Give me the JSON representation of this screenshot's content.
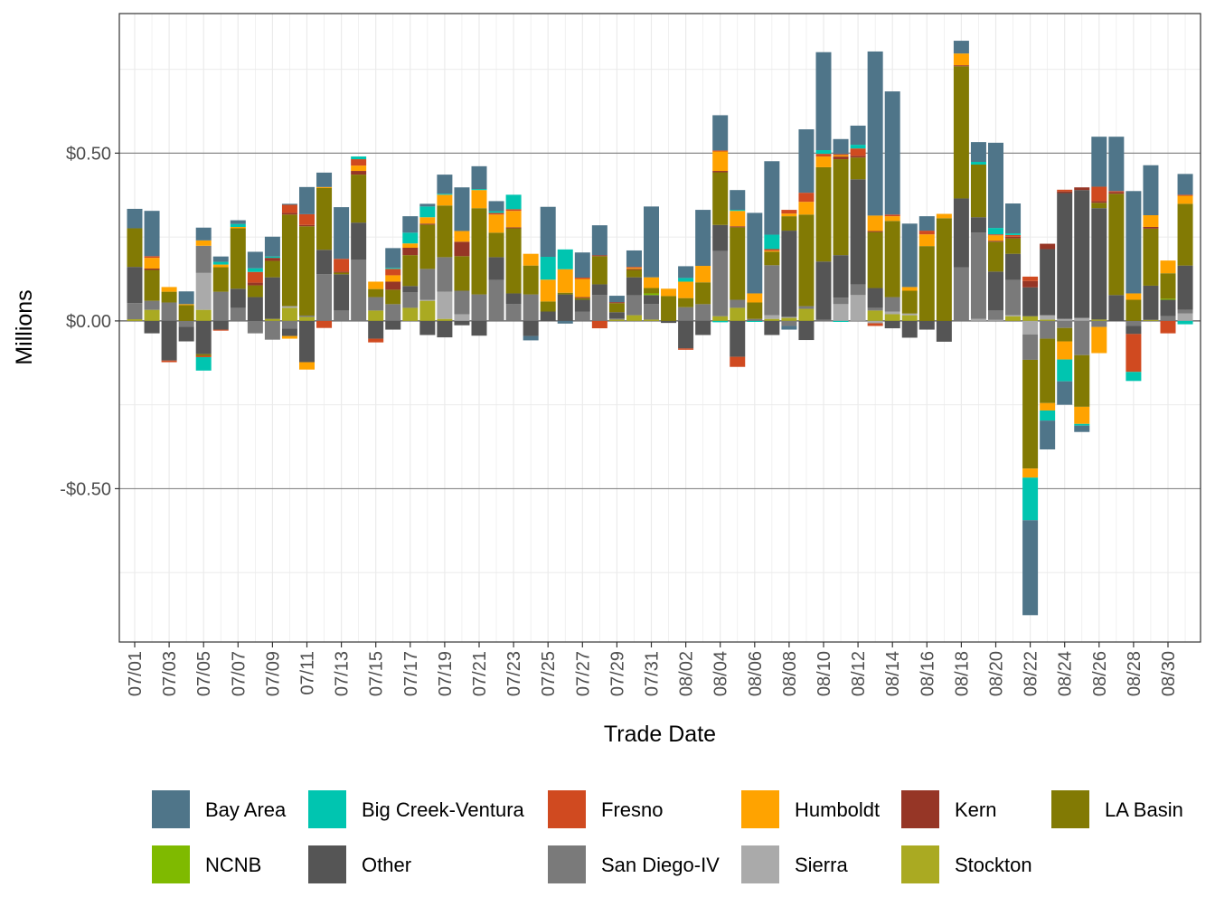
{
  "chart_data": {
    "type": "bar",
    "stacked": true,
    "title": "",
    "xlabel": "Trade Date",
    "ylabel": "Millions",
    "ylim": [
      -0.957,
      0.916
    ],
    "yticks": [
      {
        "value": 0.5,
        "label": "$0.50"
      },
      {
        "value": 0.0,
        "label": "$0.00"
      },
      {
        "value": -0.5,
        "label": "-$0.50"
      }
    ],
    "grid": true,
    "legend_position": "bottom",
    "categories": [
      "07/01",
      "07/02",
      "07/03",
      "07/04",
      "07/05",
      "07/06",
      "07/07",
      "07/08",
      "07/09",
      "07/10",
      "07/11",
      "07/12",
      "07/13",
      "07/14",
      "07/15",
      "07/16",
      "07/17",
      "07/18",
      "07/19",
      "07/20",
      "07/21",
      "07/22",
      "07/23",
      "07/24",
      "07/25",
      "07/26",
      "07/27",
      "07/28",
      "07/29",
      "07/30",
      "07/31",
      "08/01",
      "08/02",
      "08/03",
      "08/04",
      "08/05",
      "08/06",
      "08/07",
      "08/08",
      "08/09",
      "08/10",
      "08/11",
      "08/12",
      "08/13",
      "08/14",
      "08/15",
      "08/16",
      "08/17",
      "08/18",
      "08/19",
      "08/20",
      "08/21",
      "08/22",
      "08/23",
      "08/24",
      "08/25",
      "08/26",
      "08/27",
      "08/28",
      "08/29",
      "08/30",
      "08/31"
    ],
    "tick_labels": [
      "07/01",
      "07/03",
      "07/05",
      "07/07",
      "07/09",
      "07/11",
      "07/13",
      "07/15",
      "07/17",
      "07/19",
      "07/21",
      "07/23",
      "07/25",
      "07/27",
      "07/29",
      "07/31",
      "08/02",
      "08/04",
      "08/06",
      "08/08",
      "08/10",
      "08/12",
      "08/14",
      "08/16",
      "08/18",
      "08/20",
      "08/22",
      "08/24",
      "08/26",
      "08/28",
      "08/30"
    ],
    "series": [
      {
        "name": "Bay Area",
        "color": "#4F7589",
        "values": [
          0.058,
          0.135,
          0,
          0.038,
          0.038,
          0.016,
          0.011,
          0.049,
          0.059,
          0.003,
          0.081,
          0.043,
          0.154,
          0,
          0,
          0.059,
          0.049,
          0.008,
          0.057,
          0.13,
          0.068,
          0.03,
          0,
          -0.013,
          0.149,
          -0.008,
          0.075,
          0.089,
          0.019,
          0.049,
          0.211,
          0,
          0.035,
          0.167,
          0.105,
          0.059,
          0.24,
          0.219,
          -0.011,
          0.189,
          0.292,
          0.045,
          0.057,
          0.489,
          0.367,
          0.189,
          0.043,
          0,
          0.038,
          0.059,
          0.254,
          0.089,
          -0.283,
          -0.086,
          -0.07,
          -0.019,
          0.149,
          0.162,
          0.305,
          0.149,
          0,
          0.062
        ]
      },
      {
        "name": "Big Creek-Ventura",
        "color": "#00C5B0",
        "values": [
          0,
          0,
          0,
          0,
          -0.04,
          0.008,
          0.009,
          0.011,
          0.004,
          0,
          0,
          0,
          0,
          0.008,
          0,
          0.003,
          0.032,
          0.032,
          0.003,
          0,
          0.003,
          0.005,
          0.043,
          0,
          0.068,
          0.059,
          0,
          0,
          0,
          0,
          0,
          0,
          0.011,
          0,
          -0.004,
          0.003,
          -0.003,
          0.043,
          0,
          0,
          0.011,
          -0.003,
          0.011,
          0,
          0,
          0,
          0,
          0,
          0,
          0.008,
          0.019,
          0.005,
          -0.127,
          -0.03,
          -0.065,
          -0.005,
          0,
          0,
          -0.027,
          0,
          0,
          -0.01
        ]
      },
      {
        "name": "Fresno",
        "color": "#D04A20",
        "values": [
          0,
          0.005,
          -0.005,
          0,
          -0.004,
          -0.003,
          0,
          0.032,
          0,
          0.024,
          0.032,
          -0.021,
          0.038,
          0.019,
          -0.011,
          0.019,
          0,
          0,
          0,
          0,
          0,
          0.005,
          0.005,
          0,
          0,
          0,
          0.004,
          -0.022,
          0,
          0.003,
          0,
          0,
          -0.004,
          0,
          0.003,
          -0.03,
          0,
          0.005,
          0.011,
          0.027,
          0.008,
          0.003,
          0.022,
          -0.008,
          0.005,
          0,
          0.011,
          0,
          0,
          0,
          0.003,
          0.005,
          0.013,
          0,
          0.005,
          0,
          0.043,
          0.003,
          -0.113,
          0,
          -0.037,
          0.003
        ]
      },
      {
        "name": "Humboldt",
        "color": "#FFA300",
        "values": [
          0,
          0.032,
          0.014,
          0.003,
          0.016,
          0.008,
          0.004,
          0,
          0,
          -0.008,
          -0.022,
          0.003,
          0,
          0.016,
          0.022,
          0.019,
          0.013,
          0.019,
          0.032,
          0.032,
          0.054,
          0.054,
          0.049,
          0.035,
          0.065,
          0.07,
          0.054,
          0,
          0,
          0.003,
          0.032,
          0.022,
          0.049,
          0.049,
          0.058,
          0.046,
          0.027,
          0.003,
          0.008,
          0.038,
          0.032,
          0.004,
          0,
          0.046,
          0.014,
          0.011,
          0.035,
          0.013,
          0.035,
          0,
          0.016,
          0,
          -0.027,
          -0.022,
          -0.054,
          -0.051,
          -0.078,
          0,
          0.019,
          0.035,
          0.038,
          0.024
        ]
      },
      {
        "name": "Kern",
        "color": "#963626",
        "values": [
          0,
          0.004,
          0,
          0,
          0,
          0,
          0,
          0.008,
          0.009,
          0.005,
          0.004,
          0,
          0.003,
          0.011,
          0,
          0.024,
          0.022,
          0.003,
          0,
          0.043,
          0,
          0,
          0.003,
          0,
          0,
          0,
          0.003,
          0.003,
          0.003,
          0.003,
          0,
          0,
          0,
          0,
          0.004,
          0.003,
          0,
          0,
          0,
          0,
          0,
          0.008,
          0.005,
          0.003,
          0,
          0,
          0,
          0,
          0.003,
          0,
          0.003,
          0.005,
          0.019,
          0.016,
          0.005,
          0.008,
          0.005,
          0.005,
          0,
          0.005,
          0,
          0
        ]
      },
      {
        "name": "LA Basin",
        "color": "#827A04",
        "values": [
          0.115,
          0.092,
          0.032,
          0.047,
          -0.005,
          0.073,
          0.18,
          0.035,
          0.049,
          0.273,
          0.266,
          0.184,
          0.005,
          0.143,
          0.024,
          0.043,
          0.092,
          0.132,
          0.154,
          0.103,
          0.257,
          0.073,
          0.194,
          0.086,
          0.03,
          0.005,
          0.005,
          0.084,
          0.027,
          0.022,
          0.016,
          0.074,
          0.027,
          0.065,
          0.157,
          0.216,
          0.049,
          0.04,
          0.043,
          0.273,
          0.281,
          0.286,
          0.065,
          0.167,
          0.227,
          0.068,
          0.223,
          0.306,
          0.394,
          0.157,
          0.089,
          0.046,
          -0.324,
          -0.192,
          -0.04,
          -0.154,
          0.016,
          0.302,
          0.063,
          0.17,
          0.076,
          0.184
        ]
      },
      {
        "name": "NCNB",
        "color": "#7FBA00",
        "values": [
          0,
          0,
          0,
          0,
          0,
          0,
          0,
          0,
          0,
          0,
          0,
          0,
          0,
          0,
          0,
          0,
          0,
          0,
          0,
          0,
          0,
          0,
          0,
          0,
          0,
          0,
          0,
          0,
          0,
          0,
          0.005,
          0,
          0,
          0,
          0,
          0,
          0,
          0,
          0,
          0,
          0,
          0,
          0,
          0,
          0,
          0,
          0,
          0,
          0,
          0,
          0,
          0,
          0,
          0,
          0,
          0,
          0,
          0,
          0,
          0,
          0.003,
          0
        ]
      },
      {
        "name": "Other",
        "color": "#555555",
        "values": [
          0.108,
          -0.037,
          -0.118,
          -0.044,
          -0.099,
          -0.026,
          0.057,
          0.071,
          0.124,
          -0.022,
          -0.123,
          0.073,
          0.108,
          0.111,
          -0.053,
          -0.026,
          0.019,
          -0.042,
          -0.049,
          -0.013,
          -0.044,
          0.068,
          0.032,
          -0.045,
          0.028,
          0.079,
          0.035,
          0.032,
          0.019,
          0.054,
          0.027,
          -0.006,
          -0.082,
          -0.042,
          0.078,
          -0.107,
          0,
          -0.042,
          0.257,
          -0.057,
          0.174,
          0.127,
          0.313,
          0.059,
          -0.022,
          -0.05,
          -0.026,
          -0.062,
          0.205,
          0.046,
          0.116,
          0.078,
          0.086,
          0.197,
          0.375,
          0.381,
          0.332,
          0.077,
          -0.024,
          0.102,
          0.049,
          0.132
        ]
      },
      {
        "name": "San Diego-IV",
        "color": "#7A7A7A",
        "values": [
          0.048,
          0.027,
          0.055,
          -0.017,
          0.081,
          0.087,
          0.039,
          -0.037,
          -0.056,
          -0.023,
          0.004,
          0.139,
          0.031,
          0.182,
          0.04,
          0.05,
          0.046,
          0.092,
          0.103,
          0.07,
          0.079,
          0.122,
          0.05,
          0.079,
          0,
          0,
          0.028,
          0.077,
          0.003,
          0.059,
          0.046,
          0,
          0.041,
          0.05,
          0.194,
          0.024,
          0.006,
          0.149,
          -0.015,
          0.008,
          0.003,
          0.019,
          0.032,
          0.008,
          0.043,
          0,
          0,
          0,
          0.16,
          0.257,
          0.028,
          0.105,
          -0.076,
          -0.053,
          -0.021,
          -0.102,
          -0.018,
          0,
          -0.015,
          0,
          0.014,
          0.011
        ]
      },
      {
        "name": "Sierra",
        "color": "#AAAAAA",
        "values": [
          0,
          0,
          0,
          0,
          0.11,
          0,
          0,
          0,
          0,
          0.005,
          0,
          0,
          0,
          0,
          0,
          0,
          0,
          0.003,
          0.081,
          0.02,
          0,
          0,
          0,
          0,
          0,
          0,
          0,
          0,
          0,
          0,
          0,
          0,
          0,
          0,
          0,
          0,
          0,
          0.011,
          0.003,
          0,
          0,
          0.05,
          0.077,
          -0.007,
          0.008,
          0.005,
          0,
          0,
          0,
          0.006,
          0.003,
          0.003,
          -0.04,
          0.013,
          0.006,
          0.009,
          0,
          0,
          0,
          0,
          0,
          0.022
        ]
      },
      {
        "name": "Stockton",
        "color": "#AAAA22",
        "values": [
          0.005,
          0.033,
          0,
          0,
          0.033,
          0,
          0,
          0,
          0.006,
          0.039,
          0.012,
          0,
          0,
          0,
          0.031,
          0,
          0.039,
          0.06,
          0.006,
          0,
          0,
          0,
          0,
          0,
          0,
          0,
          0,
          0,
          0.004,
          0.017,
          0.004,
          0,
          0,
          0,
          0.014,
          0.039,
          0,
          0.006,
          0.009,
          0.036,
          0,
          0,
          0,
          0.031,
          0.02,
          0.017,
          0,
          0,
          0,
          0,
          0,
          0.014,
          0.014,
          0.004,
          0,
          0,
          0.004,
          0,
          0,
          0.003,
          0,
          0
        ]
      }
    ]
  }
}
